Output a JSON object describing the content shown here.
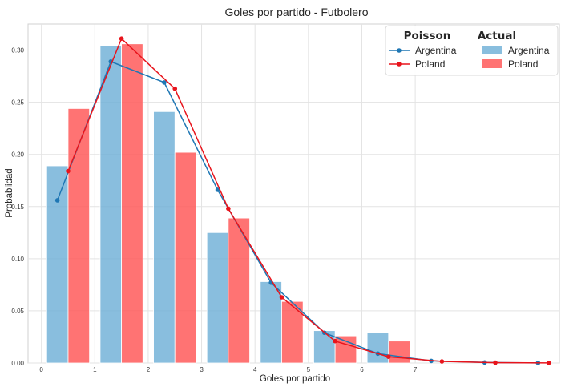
{
  "chart_data": {
    "type": "bar",
    "title": "Goles por partido - Futbolero",
    "xlabel": "Goles por partido",
    "ylabel": "Probablidad",
    "xlim": [
      -0.25,
      9.7
    ],
    "ylim": [
      0,
      0.325
    ],
    "x_ticks": [
      "0",
      "1",
      "2",
      "3",
      "4",
      "5",
      "6",
      "7"
    ],
    "y_ticks": [
      "0.00",
      "0.05",
      "0.10",
      "0.15",
      "0.20",
      "0.25",
      "0.30"
    ],
    "grid": true,
    "legend_position": "top-right",
    "legend": {
      "poisson_header": "Poisson",
      "actual_header": "Actual",
      "entries": [
        "Argentina",
        "Poland"
      ]
    },
    "series": [
      {
        "name": "Argentina",
        "kind": "actual-bar",
        "color": "#6baed6",
        "x": [
          0,
          1,
          2,
          3,
          4,
          5,
          6
        ],
        "values": [
          0.189,
          0.304,
          0.241,
          0.125,
          0.078,
          0.031,
          0.029
        ]
      },
      {
        "name": "Poland",
        "kind": "actual-bar",
        "color": "#ff5b5b",
        "x": [
          0,
          1,
          2,
          3,
          4,
          5,
          6
        ],
        "values": [
          0.244,
          0.306,
          0.202,
          0.139,
          0.059,
          0.026,
          0.021
        ]
      },
      {
        "name": "Argentina",
        "kind": "poisson-line",
        "color": "#1f77b4",
        "x": [
          0,
          1,
          2,
          3,
          4,
          5,
          6,
          7,
          8,
          9
        ],
        "values": [
          0.156,
          0.289,
          0.269,
          0.166,
          0.077,
          0.029,
          0.009,
          0.002,
          0.0005,
          0.0001
        ]
      },
      {
        "name": "Poland",
        "kind": "poisson-line",
        "color": "#e8141c",
        "x": [
          0,
          1,
          2,
          3,
          4,
          5,
          6,
          7,
          8,
          9
        ],
        "values": [
          0.184,
          0.311,
          0.263,
          0.148,
          0.063,
          0.021,
          0.006,
          0.0015,
          0.0003,
          0.0001
        ]
      }
    ]
  }
}
